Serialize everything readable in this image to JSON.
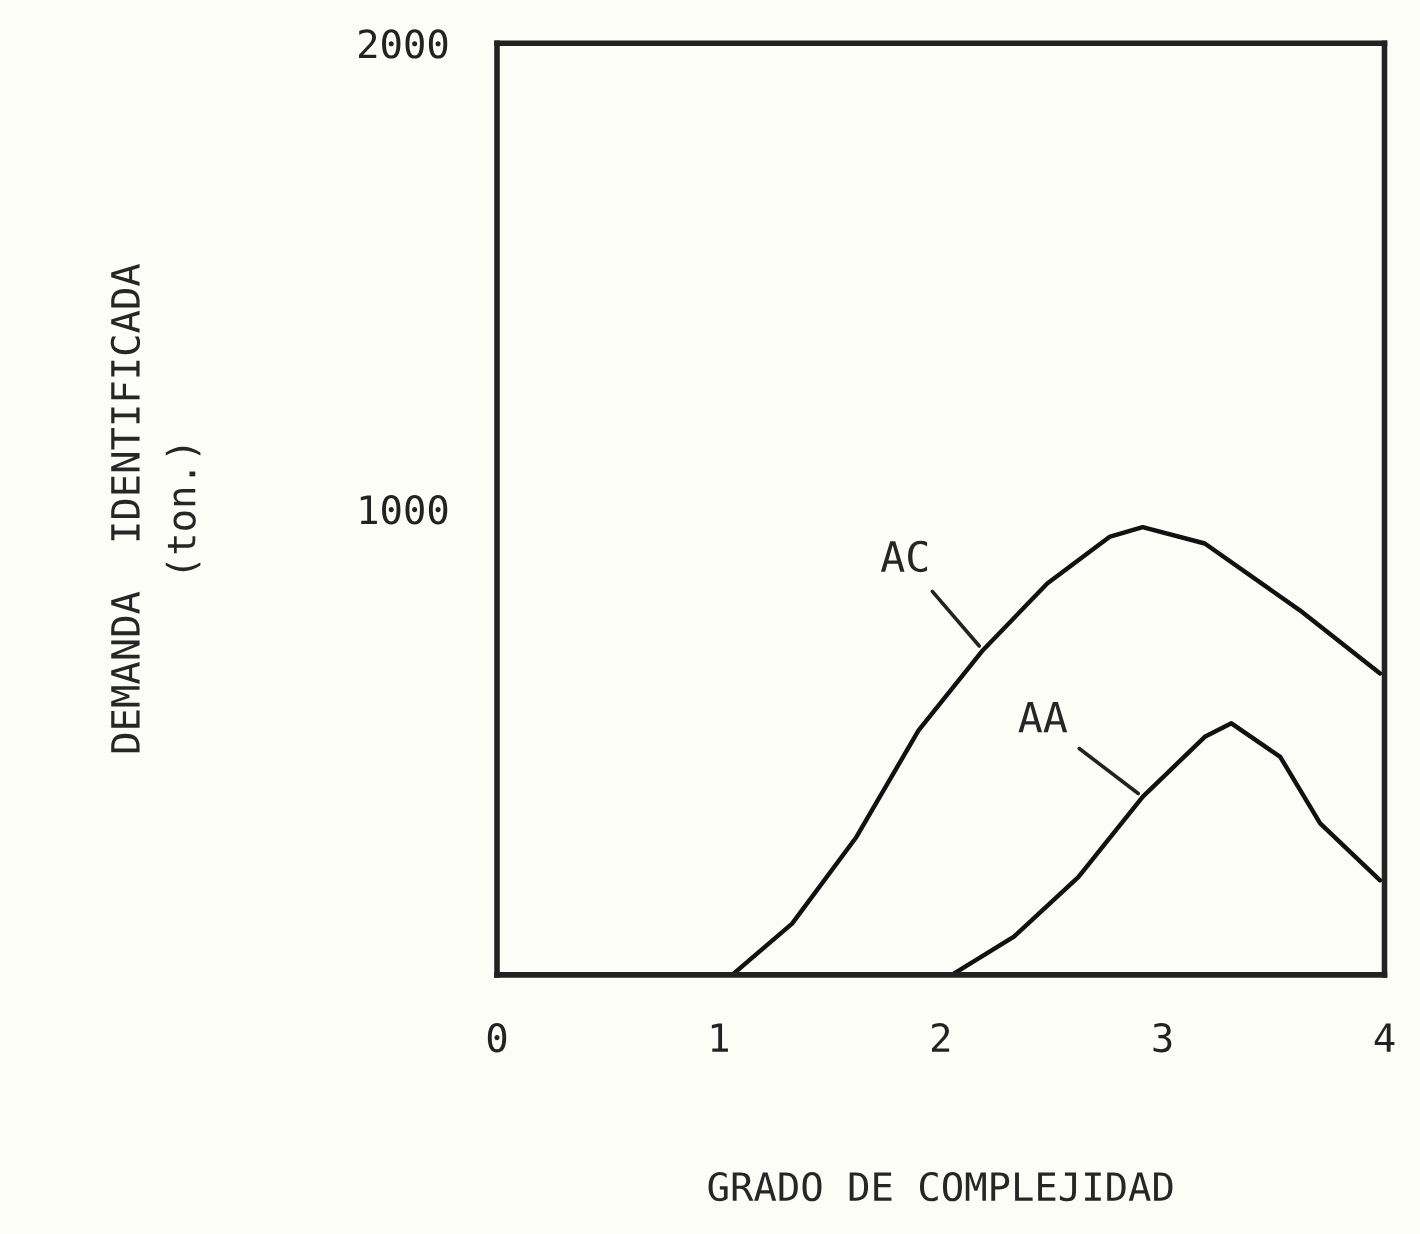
{
  "chart_data": {
    "type": "line",
    "xlabel": "GRADO DE COMPLEJIDAD",
    "ylabel": "DEMANDA  IDENTIFICADA\n(ton.)",
    "xlim": [
      0,
      4
    ],
    "ylim": [
      0,
      2000
    ],
    "xticks": [
      0,
      1,
      2,
      3,
      4
    ],
    "yticks": [
      1000,
      2000
    ],
    "grid": false,
    "marker": "none",
    "line_style": "solid",
    "series": [
      {
        "color": "#111111",
        "x": [
          1.06,
          1.33,
          1.62,
          1.9,
          2.19,
          2.48,
          2.76,
          2.91,
          3.19,
          3.62,
          3.98
        ],
        "values": [
          0,
          110,
          296,
          525,
          697,
          840,
          940,
          961,
          926,
          782,
          647
        ]
      },
      {
        "color": "#111111",
        "x": [
          2.05,
          2.33,
          2.62,
          2.91,
          3.19,
          3.31,
          3.53,
          3.71,
          3.98
        ],
        "values": [
          0,
          82,
          210,
          382,
          511,
          540,
          468,
          325,
          203
        ]
      }
    ],
    "annotations": [
      {
        "text": "AC",
        "x": 2.19,
        "y": 697
      },
      {
        "text": "AA",
        "x": 2.91,
        "y": 382
      }
    ]
  }
}
